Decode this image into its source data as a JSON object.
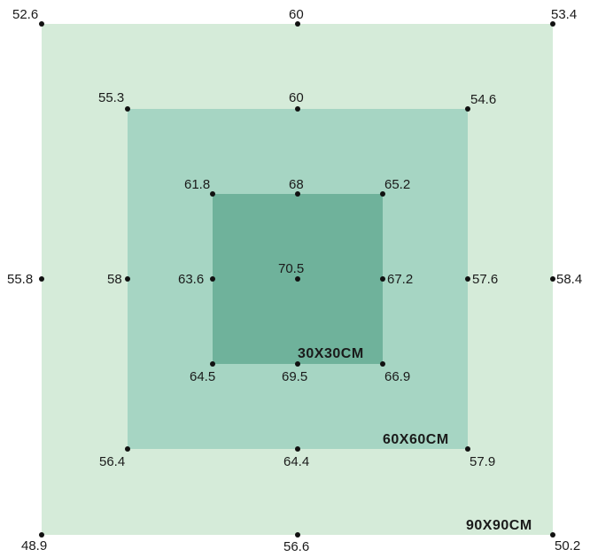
{
  "colors": {
    "outer": "#d5ebd9",
    "middle": "#a6d5c3",
    "inner": "#6fb29b",
    "point": "#111111",
    "text": "#1a1a1a"
  },
  "squares": {
    "outer": {
      "label": "90X90CM"
    },
    "middle": {
      "label": "60X60CM"
    },
    "inner": {
      "label": "30X30CM"
    }
  },
  "points": {
    "outer": {
      "top_left": "52.6",
      "top_center": "60",
      "top_right": "53.4",
      "mid_left": "55.8",
      "mid_right": "58.4",
      "bottom_left": "48.9",
      "bottom_center": "56.6",
      "bottom_right": "50.2"
    },
    "middle": {
      "top_left": "55.3",
      "top_center": "60",
      "top_right": "54.6",
      "mid_left": "58",
      "mid_right": "57.6",
      "bottom_left": "56.4",
      "bottom_center": "64.4",
      "bottom_right": "57.9"
    },
    "inner": {
      "top_left": "61.8",
      "top_center": "68",
      "top_right": "65.2",
      "mid_left": "63.6",
      "mid_right": "67.2",
      "bottom_left": "64.5",
      "bottom_center": "69.5",
      "bottom_right": "66.9"
    },
    "center": "70.5"
  }
}
